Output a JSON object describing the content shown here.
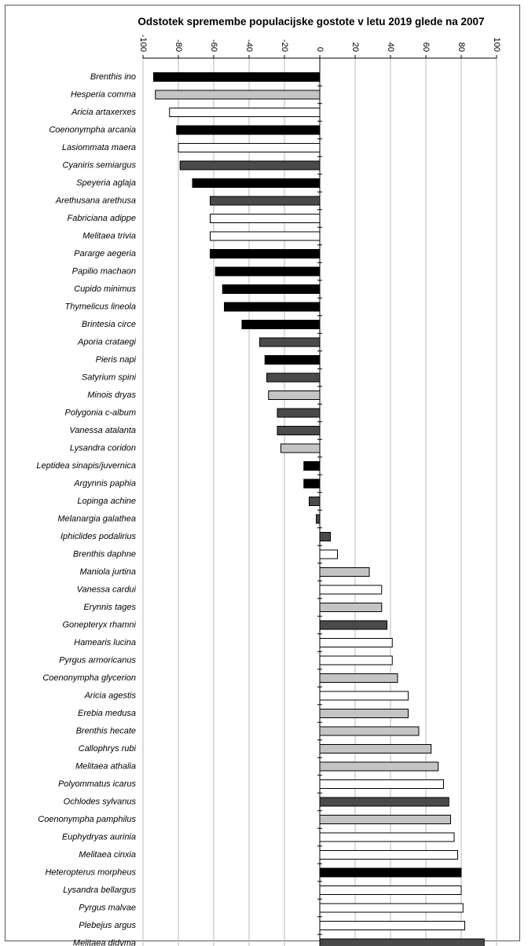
{
  "chart_data": {
    "type": "bar",
    "orientation": "horizontal",
    "title": "Odstotek spremembe populacijske gostote v letu 2019 glede na 2007",
    "xlim": [
      -100,
      100
    ],
    "xticks": [
      -100,
      -80,
      -60,
      -40,
      -20,
      0,
      20,
      40,
      60,
      80,
      100
    ],
    "xtick_labels": [
      "-100",
      "-80",
      "-60",
      "-40",
      "-20",
      "0",
      "20",
      "40",
      "60",
      "80",
      "100"
    ],
    "grid": true,
    "colors": {
      "black": "#000000",
      "dark": "#4a4a4a",
      "light": "#c4c4c4",
      "white": "#ffffff"
    },
    "bars": [
      {
        "label": "Brenthis ino",
        "value": -94,
        "fill": "black"
      },
      {
        "label": "Hesperia comma",
        "value": -93,
        "fill": "light"
      },
      {
        "label": "Aricia artaxerxes",
        "value": -85,
        "fill": "white"
      },
      {
        "label": "Coenonympha arcania",
        "value": -81,
        "fill": "black"
      },
      {
        "label": "Lasiommata maera",
        "value": -80,
        "fill": "white"
      },
      {
        "label": "Cyaniris semiargus",
        "value": -79,
        "fill": "dark"
      },
      {
        "label": "Speyeria aglaja",
        "value": -72,
        "fill": "black"
      },
      {
        "label": "Arethusana arethusa",
        "value": -62,
        "fill": "dark"
      },
      {
        "label": "Fabriciana adippe",
        "value": -62,
        "fill": "white"
      },
      {
        "label": "Melitaea trivia",
        "value": -62,
        "fill": "white"
      },
      {
        "label": "Pararge aegeria",
        "value": -62,
        "fill": "black"
      },
      {
        "label": "Papilio machaon",
        "value": -59,
        "fill": "black"
      },
      {
        "label": "Cupido minimus",
        "value": -55,
        "fill": "black"
      },
      {
        "label": "Thymelicus lineola",
        "value": -54,
        "fill": "black"
      },
      {
        "label": "Brintesia circe",
        "value": -44,
        "fill": "black"
      },
      {
        "label": "Aporia crataegi",
        "value": -34,
        "fill": "dark"
      },
      {
        "label": "Pieris napi",
        "value": -31,
        "fill": "black"
      },
      {
        "label": "Satyrium spini",
        "value": -30,
        "fill": "dark"
      },
      {
        "label": "Minois dryas",
        "value": -29,
        "fill": "light"
      },
      {
        "label": "Polygonia c-album",
        "value": -24,
        "fill": "dark"
      },
      {
        "label": "Vanessa atalanta",
        "value": -24,
        "fill": "dark"
      },
      {
        "label": "Lysandra coridon",
        "value": -22,
        "fill": "light"
      },
      {
        "label": "Leptidea sinapis/juvernica",
        "value": -9,
        "fill": "black"
      },
      {
        "label": "Argynnis paphia",
        "value": -9,
        "fill": "black"
      },
      {
        "label": "Lopinga achine",
        "value": -6,
        "fill": "dark"
      },
      {
        "label": "Melanargia galathea",
        "value": -2,
        "fill": "dark"
      },
      {
        "label": "Iphiclides podalirius",
        "value": 6,
        "fill": "dark"
      },
      {
        "label": "Brenthis daphne",
        "value": 10,
        "fill": "white"
      },
      {
        "label": "Maniola jurtina",
        "value": 28,
        "fill": "light"
      },
      {
        "label": "Vanessa cardui",
        "value": 35,
        "fill": "white"
      },
      {
        "label": "Erynnis tages",
        "value": 35,
        "fill": "light"
      },
      {
        "label": "Gonepteryx rhamni",
        "value": 38,
        "fill": "dark"
      },
      {
        "label": "Hamearis lucina",
        "value": 41,
        "fill": "white"
      },
      {
        "label": "Pyrgus armoricanus",
        "value": 41,
        "fill": "white"
      },
      {
        "label": "Coenonympha glycerion",
        "value": 44,
        "fill": "light"
      },
      {
        "label": "Aricia agestis",
        "value": 50,
        "fill": "white"
      },
      {
        "label": "Erebia medusa",
        "value": 50,
        "fill": "light"
      },
      {
        "label": "Brenthis hecate",
        "value": 56,
        "fill": "light"
      },
      {
        "label": "Callophrys rubi",
        "value": 63,
        "fill": "light"
      },
      {
        "label": "Melitaea athalia",
        "value": 67,
        "fill": "light"
      },
      {
        "label": "Polyommatus icarus",
        "value": 70,
        "fill": "white"
      },
      {
        "label": "Ochlodes sylvanus",
        "value": 73,
        "fill": "dark"
      },
      {
        "label": "Coenonympha pamphilus",
        "value": 74,
        "fill": "light"
      },
      {
        "label": "Euphydryas aurinia",
        "value": 76,
        "fill": "white"
      },
      {
        "label": "Melitaea cinxia",
        "value": 78,
        "fill": "white"
      },
      {
        "label": "Heteropterus morpheus",
        "value": 80,
        "fill": "black"
      },
      {
        "label": "Lysandra bellargus",
        "value": 80,
        "fill": "white"
      },
      {
        "label": "Pyrgus malvae",
        "value": 81,
        "fill": "white"
      },
      {
        "label": "Plebejus argus",
        "value": 82,
        "fill": "white"
      },
      {
        "label": "Melitaea didyma",
        "value": 93,
        "fill": "dark"
      }
    ]
  }
}
